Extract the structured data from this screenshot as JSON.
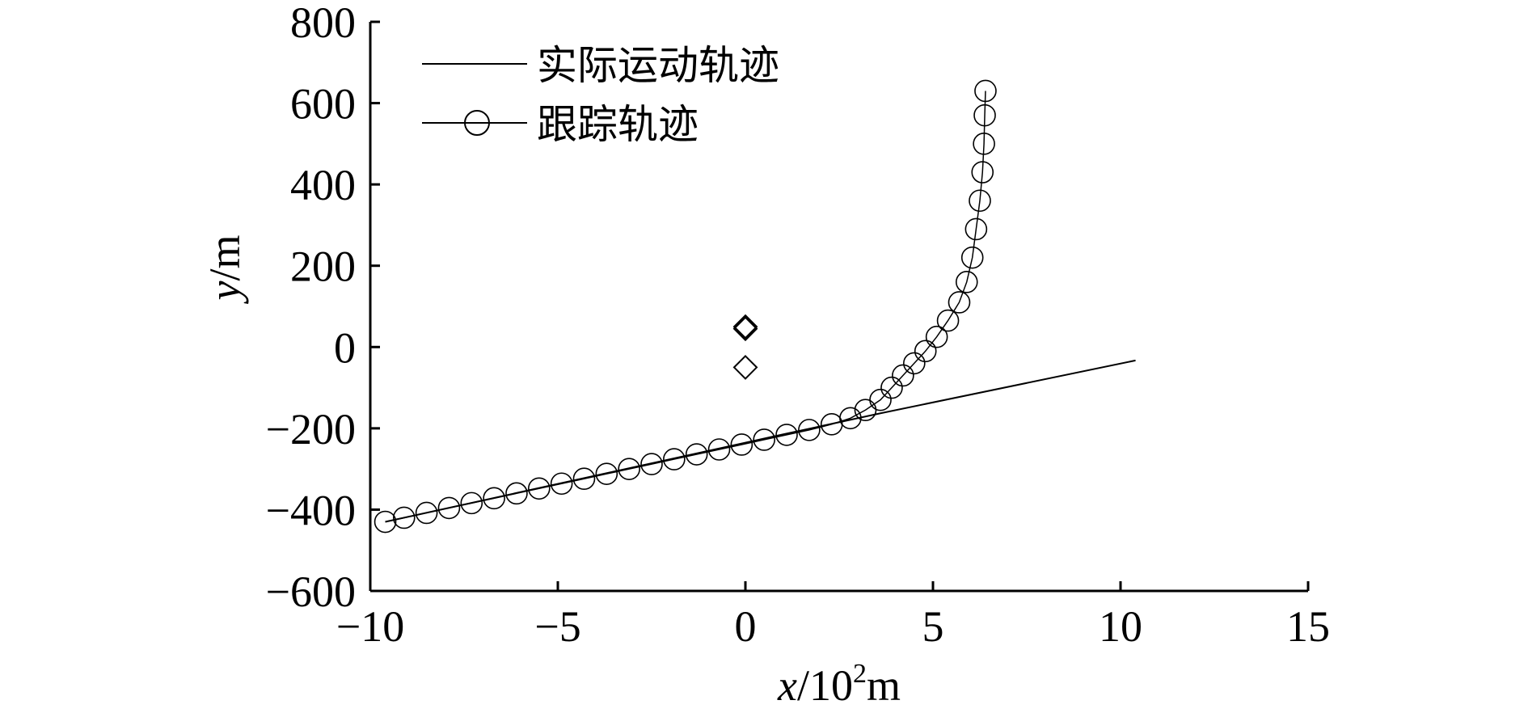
{
  "chart_data": {
    "type": "line",
    "xlabel_var": "x",
    "xlabel_unit": "/10",
    "xlabel_exp": "2",
    "xlabel_tail": "m",
    "ylabel_var": "y",
    "ylabel_tail": "/m",
    "xlim": [
      -10,
      15
    ],
    "ylim": [
      -600,
      800
    ],
    "xticks": [
      -10,
      -5,
      0,
      5,
      10,
      15
    ],
    "yticks": [
      -600,
      -400,
      -200,
      0,
      200,
      400,
      600,
      800
    ],
    "xtick_labels": [
      "−10",
      "−5",
      "0",
      "5",
      "10",
      "15"
    ],
    "ytick_labels": [
      "−600",
      "−400",
      "−200",
      "0",
      "200",
      "400",
      "600",
      "800"
    ],
    "legend_position": "top-left",
    "grid": false,
    "series": [
      {
        "name": "实际运动轨迹",
        "style": "line",
        "x": [
          -9.6,
          1.0,
          3.0,
          3.6,
          10.4
        ],
        "y": [
          -430,
          -215,
          -175,
          -163,
          -33
        ]
      },
      {
        "name": "跟踪轨迹",
        "style": "circle-markers",
        "x": [
          -9.6,
          -9.1,
          -8.5,
          -7.9,
          -7.3,
          -6.7,
          -6.1,
          -5.5,
          -4.9,
          -4.3,
          -3.7,
          -3.1,
          -2.5,
          -1.9,
          -1.3,
          -0.7,
          -0.1,
          0.5,
          1.1,
          1.7,
          2.3,
          2.8,
          3.2,
          3.6,
          3.9,
          4.2,
          4.5,
          4.8,
          5.1,
          5.4,
          5.7,
          5.9,
          6.05,
          6.15,
          6.25,
          6.32,
          6.36,
          6.38,
          6.4
        ],
        "y": [
          -430,
          -420,
          -408,
          -396,
          -384,
          -372,
          -360,
          -348,
          -336,
          -324,
          -312,
          -300,
          -288,
          -276,
          -264,
          -252,
          -240,
          -228,
          -216,
          -204,
          -190,
          -175,
          -155,
          -130,
          -100,
          -70,
          -40,
          -10,
          25,
          65,
          110,
          160,
          220,
          290,
          360,
          430,
          500,
          570,
          630
        ]
      },
      {
        "name": "",
        "style": "diamond-markers",
        "x": [
          0.0,
          0.0,
          0.0
        ],
        "y": [
          50,
          45,
          -50
        ]
      }
    ]
  }
}
